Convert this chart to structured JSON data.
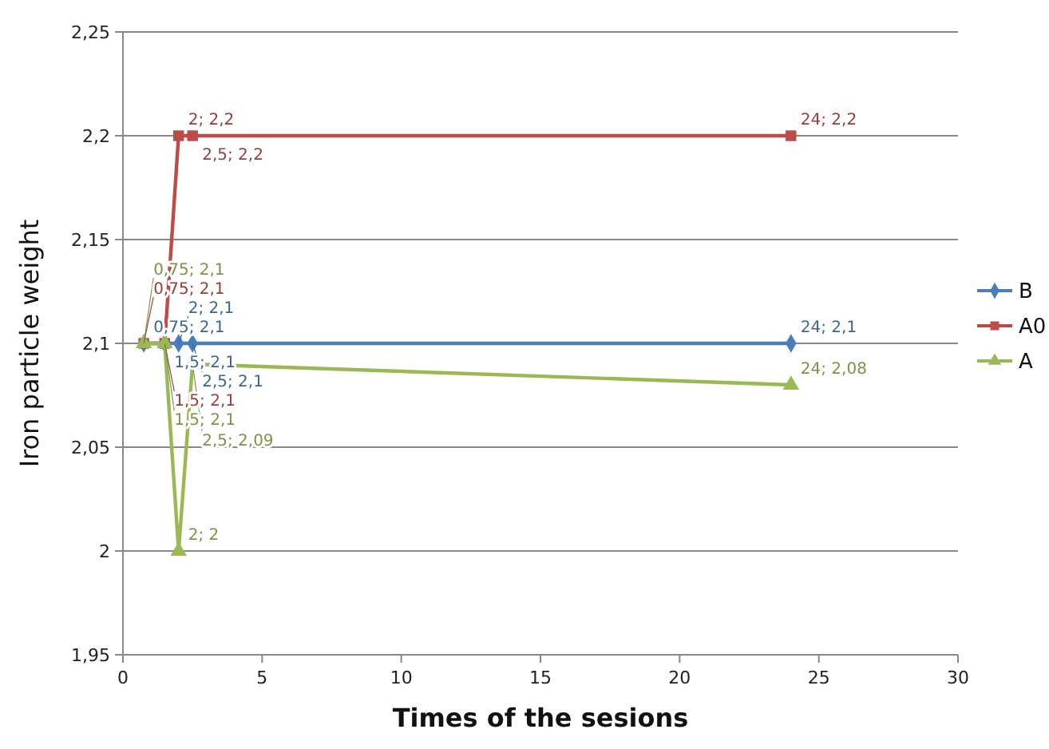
{
  "chart_data": {
    "type": "line",
    "xlabel": "Times of the sesions",
    "ylabel": "Iron particle weight",
    "xlim": [
      0,
      30
    ],
    "xticks": [
      0,
      5,
      10,
      15,
      20,
      25,
      30
    ],
    "ylim": [
      1.95,
      2.25
    ],
    "yticks": [
      {
        "value": 1.95,
        "label": "1,95"
      },
      {
        "value": 2,
        "label": "2"
      },
      {
        "value": 2.05,
        "label": "2,05"
      },
      {
        "value": 2.1,
        "label": "2,1"
      },
      {
        "value": 2.15,
        "label": "2,15"
      },
      {
        "value": 2.2,
        "label": "2,2"
      },
      {
        "value": 2.25,
        "label": "2,25"
      }
    ],
    "grid": "y",
    "legend": "right",
    "series": [
      {
        "name": "B",
        "color": "#4a7ebb",
        "marker": "diamond",
        "x": [
          0.75,
          1.5,
          2,
          2.5,
          24
        ],
        "values": [
          2.1,
          2.1,
          2.1,
          2.1,
          2.1
        ],
        "value_labels": [
          "0,75; 2,1",
          "1,5; 2,1",
          "2; 2,1",
          "2,5; 2,1",
          "24; 2,1"
        ]
      },
      {
        "name": "A0",
        "color": "#be4b48",
        "marker": "square",
        "x": [
          0.75,
          1.5,
          2,
          2.5,
          24
        ],
        "values": [
          2.1,
          2.1,
          2.2,
          2.2,
          2.2
        ],
        "value_labels": [
          "0,75; 2,1",
          "1,5; 2,1",
          "2; 2,2",
          "2,5; 2,2",
          "24; 2,2"
        ]
      },
      {
        "name": "A",
        "color": "#98b954",
        "marker": "triangle",
        "x": [
          0.75,
          1.5,
          2,
          2.5,
          24
        ],
        "values": [
          2.1,
          2.1,
          2,
          2.09,
          2.08
        ],
        "value_labels": [
          "0,75; 2,1",
          "1,5; 2,1",
          "2; 2",
          "2,5; 2,09",
          "24; 2,08"
        ]
      }
    ]
  }
}
